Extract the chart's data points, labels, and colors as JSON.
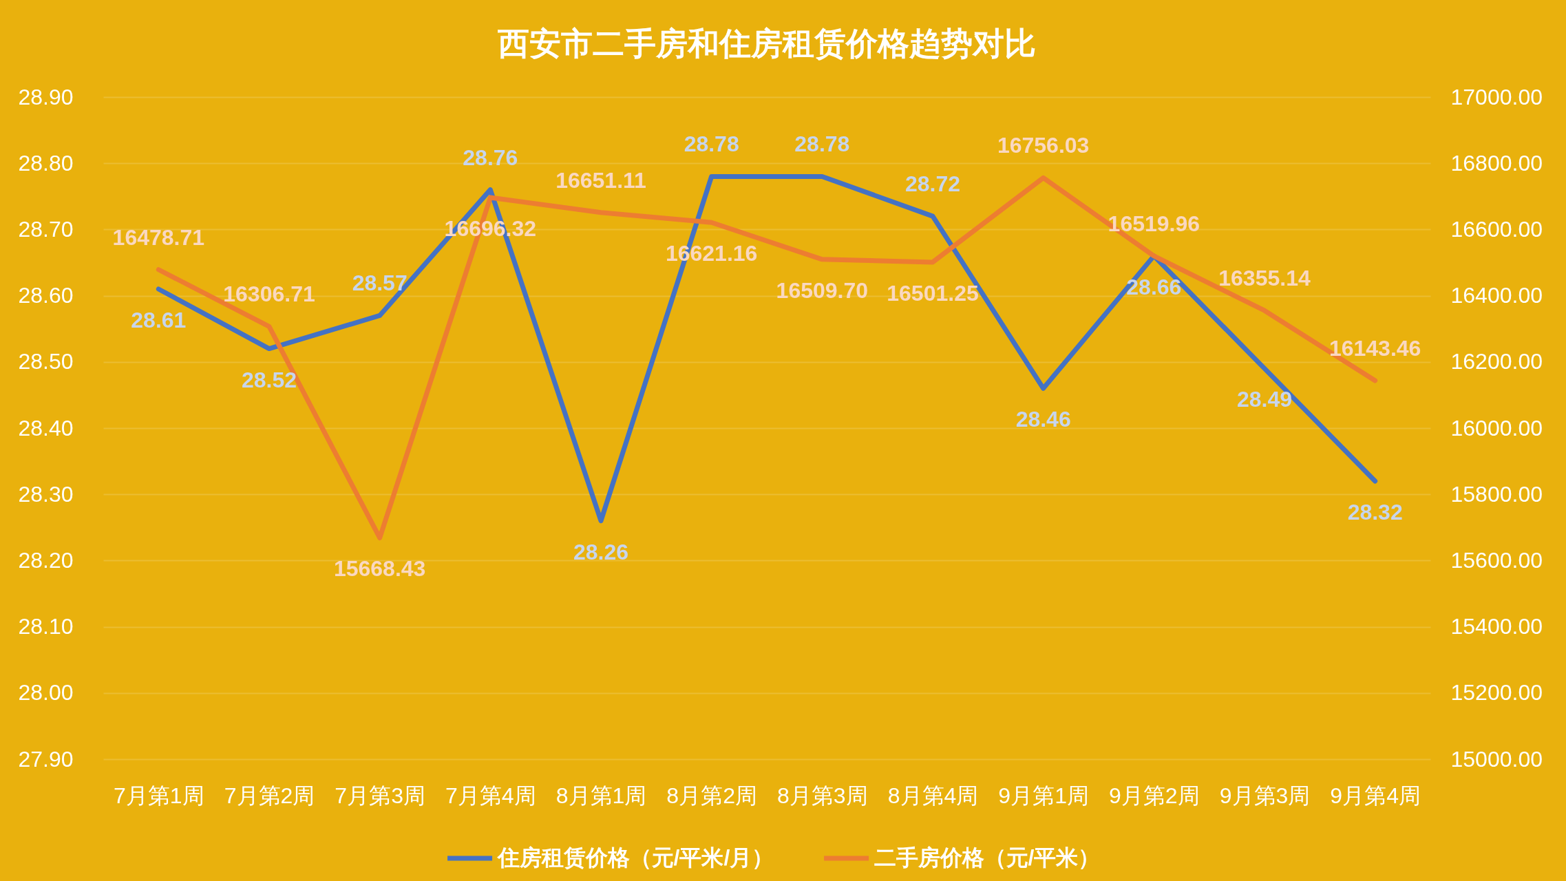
{
  "chart_data": {
    "type": "line",
    "title": "西安市二手房和住房租赁价格趋势对比",
    "categories": [
      "7月第1周",
      "7月第2周",
      "7月第3周",
      "7月第4周",
      "8月第1周",
      "8月第2周",
      "8月第3周",
      "8月第4周",
      "9月第1周",
      "9月第2周",
      "9月第3周",
      "9月第4周"
    ],
    "series": [
      {
        "name": "住房租赁价格（元/平米/月）",
        "color": "#4472c4",
        "values": [
          28.61,
          28.52,
          28.57,
          28.76,
          28.26,
          28.78,
          28.78,
          28.72,
          28.46,
          28.66,
          28.49,
          28.32
        ],
        "value_labels": [
          "28.61",
          "28.52",
          "28.57",
          "28.76",
          "28.26",
          "28.78",
          "28.78",
          "28.72",
          "28.46",
          "28.66",
          "28.49",
          "28.32"
        ]
      },
      {
        "name": "二手房价格（元/平米）",
        "color": "#ed7d31",
        "axis": "y2",
        "values": [
          16478.71,
          16306.71,
          15668.43,
          16696.32,
          16651.11,
          16621.16,
          16509.7,
          16501.25,
          16756.03,
          16519.96,
          16355.14,
          16143.46
        ],
        "value_labels": [
          "16478.71",
          "16306.71",
          "15668.43",
          "16696.32",
          "16651.11",
          "16621.16",
          "16509.70",
          "16501.25",
          "16756.03",
          "16519.96",
          "16355.14",
          "16143.46"
        ]
      }
    ],
    "ylim": [
      27.9,
      28.9
    ],
    "yticks": [
      {
        "value": 27.9,
        "label": "27.90"
      },
      {
        "value": 28.0,
        "label": "28.00"
      },
      {
        "value": 28.1,
        "label": "28.10"
      },
      {
        "value": 28.2,
        "label": "28.20"
      },
      {
        "value": 28.3,
        "label": "28.30"
      },
      {
        "value": 28.4,
        "label": "28.40"
      },
      {
        "value": 28.5,
        "label": "28.50"
      },
      {
        "value": 28.6,
        "label": "28.60"
      },
      {
        "value": 28.7,
        "label": "28.70"
      },
      {
        "value": 28.8,
        "label": "28.80"
      },
      {
        "value": 28.9,
        "label": "28.90"
      }
    ],
    "y2lim": [
      15000,
      17000
    ],
    "y2ticks": [
      {
        "value": 15000,
        "label": "15000.00"
      },
      {
        "value": 15200,
        "label": "15200.00"
      },
      {
        "value": 15400,
        "label": "15400.00"
      },
      {
        "value": 15600,
        "label": "15600.00"
      },
      {
        "value": 15800,
        "label": "15800.00"
      },
      {
        "value": 16000,
        "label": "16000.00"
      },
      {
        "value": 16200,
        "label": "16200.00"
      },
      {
        "value": 16400,
        "label": "16400.00"
      },
      {
        "value": 16600,
        "label": "16600.00"
      },
      {
        "value": 16800,
        "label": "16800.00"
      },
      {
        "value": 17000,
        "label": "17000.00"
      }
    ],
    "grid": "y",
    "legend": "bottom",
    "line_style": "solid"
  }
}
